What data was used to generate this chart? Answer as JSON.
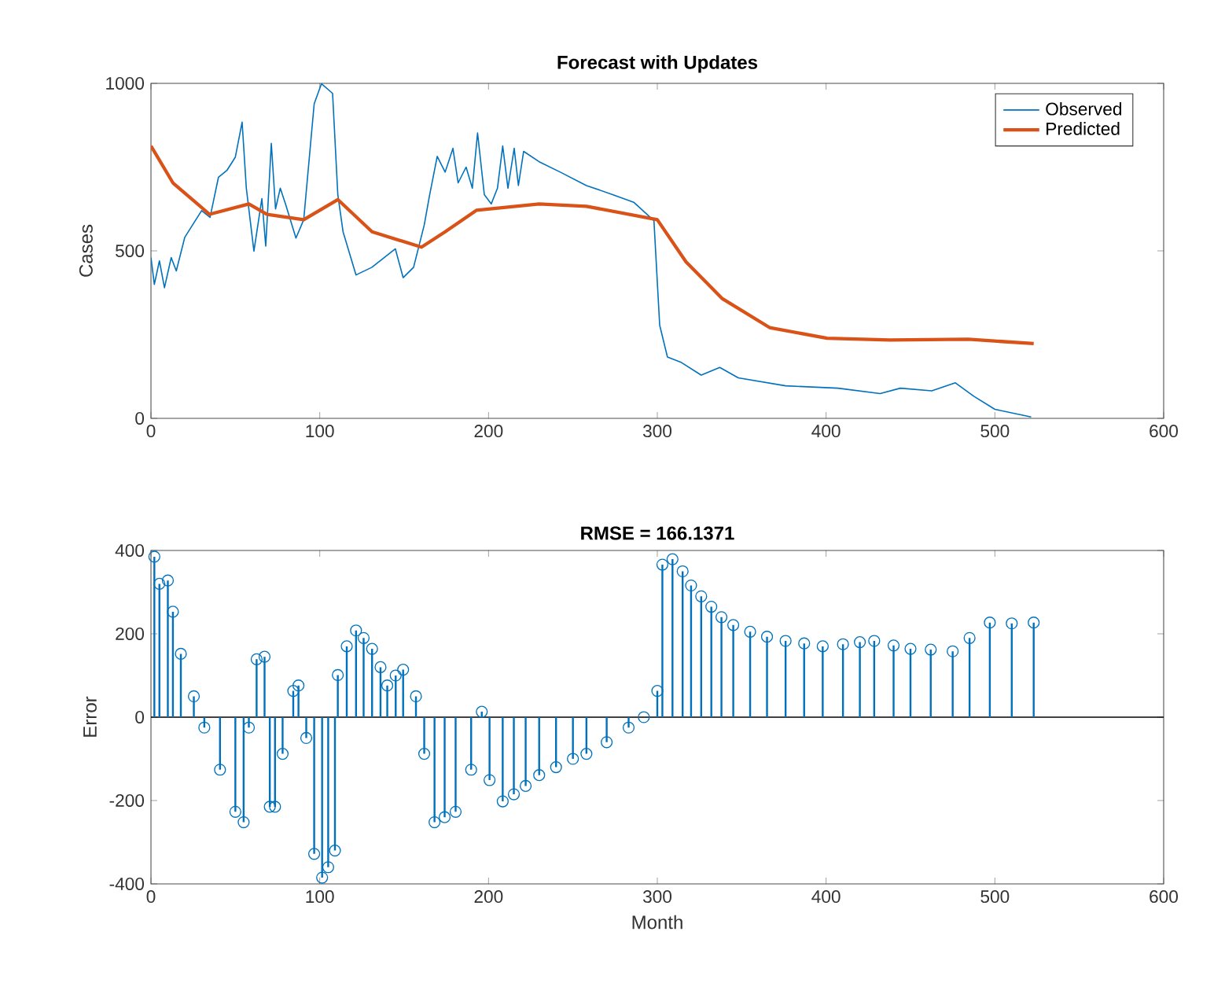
{
  "chart_data": [
    {
      "type": "line",
      "title": "Forecast with Updates",
      "ylabel": "Cases",
      "xlim": [
        0,
        600
      ],
      "xticks": [
        0,
        100,
        200,
        300,
        400,
        500,
        600
      ],
      "ylim": [
        0,
        1000
      ],
      "yticks": [
        0,
        500,
        1000
      ],
      "legend": "top right",
      "line_style": "solid",
      "series": [
        {
          "name": "Observed",
          "color": "#0072bd",
          "x": [
            0,
            2,
            5,
            8,
            12,
            15,
            20,
            25,
            30,
            35,
            40,
            45,
            50,
            54,
            56.5,
            61,
            65.7,
            68,
            71.3,
            73.8,
            76.6,
            79.7,
            85.9,
            90.5,
            96.7,
            101,
            107.6,
            110.7,
            113.8,
            121.5,
            130.9,
            144.8,
            149.4,
            155.6,
            161.9,
            165,
            169.6,
            174.3,
            178.9,
            182,
            186.7,
            190.4,
            193.5,
            197.5,
            201.6,
            205.3,
            208.4,
            211.5,
            215.2,
            217.7,
            220.8,
            230,
            242.5,
            258,
            273.5,
            286,
            298,
            301.4,
            306,
            313.8,
            326,
            337,
            348,
            376,
            407,
            432,
            444,
            462.6,
            476.6,
            487.5,
            500,
            521.5
          ],
          "values": [
            480,
            400,
            470,
            390,
            480,
            440,
            540,
            580,
            620,
            600,
            720,
            740,
            780,
            884,
            687,
            499,
            656,
            514,
            821,
            625,
            687,
            640,
            538,
            593,
            939,
            999,
            970,
            668,
            557,
            428,
            451,
            506,
            420,
            451,
            577,
            664,
            782,
            735,
            806,
            703,
            750,
            687,
            852,
            668,
            640,
            687,
            813,
            687,
            806,
            695,
            797,
            766,
            735,
            695,
            668,
            645,
            590,
            278,
            183,
            168,
            129,
            152,
            121,
            97,
            90,
            74,
            90,
            82,
            106,
            66,
            27,
            4
          ]
        },
        {
          "name": "Predicted",
          "color": "#d95319",
          "x": [
            0,
            13,
            34.7,
            58,
            68.8,
            90.5,
            110.7,
            131,
            160.3,
            174.3,
            192.8,
            230,
            258,
            300,
            317,
            338.6,
            366.5,
            400.6,
            437.8,
            484.3,
            523
          ],
          "values": [
            813,
            703,
            609,
            640,
            609,
            593,
            653,
            557,
            511,
            557,
            621,
            640,
            633,
            593,
            467,
            357,
            271,
            239,
            234,
            236,
            223
          ]
        }
      ]
    },
    {
      "type": "lollipop",
      "title": "RMSE = 166.1371",
      "xlabel": "Month",
      "ylabel": "Error",
      "xlim": [
        0,
        600
      ],
      "xticks": [
        0,
        100,
        200,
        300,
        400,
        500,
        600
      ],
      "ylim": [
        -400,
        400
      ],
      "yticks": [
        -400,
        -200,
        0,
        200,
        400
      ],
      "marker": "circle",
      "series": [
        {
          "color": "#0072bd",
          "x": [
            2,
            5,
            10,
            13,
            17.7,
            25.4,
            31.6,
            40.9,
            50,
            54.9,
            58,
            62.6,
            67.3,
            70.4,
            73.5,
            78,
            84.3,
            87.4,
            92,
            96.7,
            101.4,
            105,
            109,
            110.7,
            116,
            121.5,
            126,
            131,
            136,
            140,
            145,
            149.4,
            157,
            161.9,
            168,
            174,
            180.5,
            189.7,
            196,
            200.6,
            208.4,
            215,
            222,
            230,
            240,
            250,
            258,
            270,
            283,
            292,
            300,
            303,
            309,
            315,
            320,
            326,
            332,
            338,
            345,
            355,
            365,
            376,
            387,
            398,
            410,
            420,
            428.5,
            440,
            450,
            462,
            475,
            485,
            497,
            510,
            523
          ],
          "values": [
            385,
            320,
            328,
            253,
            152,
            50,
            -25,
            -126,
            -227,
            -252,
            -25,
            139,
            145,
            -215,
            -215,
            -88,
            63,
            76,
            -50,
            -328,
            -385,
            -360,
            -320,
            101,
            170,
            208,
            190,
            164,
            120,
            76,
            100,
            114,
            50,
            -88,
            -252,
            -240,
            -227,
            -126,
            13,
            -151,
            -202,
            -185,
            -165,
            -139,
            -120,
            -100,
            -88,
            -60,
            -25,
            0,
            63,
            366,
            379,
            350,
            316,
            290,
            265,
            240,
            221,
            205,
            193,
            183,
            177,
            170,
            175,
            180,
            183,
            172,
            164,
            162,
            158,
            190,
            227,
            225,
            227
          ]
        }
      ]
    }
  ]
}
